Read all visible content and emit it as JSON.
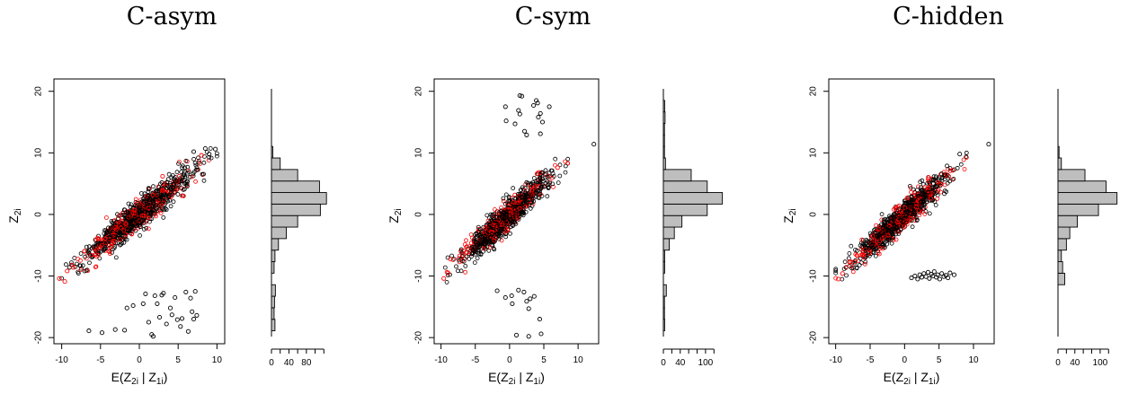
{
  "chart_data": [
    {
      "type": "scatter",
      "title": "C-asym",
      "xlabel": {
        "main": "E(Z",
        "s1": "2i",
        "mid": " | Z",
        "s2": "1i",
        "end": ")"
      },
      "ylabel": {
        "main": "Z",
        "s1": "2i"
      },
      "xlim": [
        -11,
        11
      ],
      "ylim": [
        -21,
        22
      ],
      "xticks": [
        -10,
        -5,
        0,
        5,
        10
      ],
      "yticks": [
        -20,
        -10,
        0,
        10,
        20
      ],
      "bulk": {
        "slope": 1.0,
        "xmin": -10,
        "xmax": 10,
        "ymin": -11,
        "ymax": 11,
        "spread": 1.2
      },
      "series": [
        {
          "color": "#000000",
          "points": [
            [
              -6.5,
              -18.9
            ],
            [
              -4.8,
              -19.2
            ],
            [
              -3.1,
              -18.7
            ],
            [
              -1.9,
              -18.8
            ],
            [
              -1.6,
              -15.2
            ],
            [
              -0.8,
              -14.8
            ],
            [
              0.5,
              -14.5
            ],
            [
              0.8,
              -12.9
            ],
            [
              1.2,
              -17.5
            ],
            [
              1.6,
              -19.5
            ],
            [
              2.0,
              -13.2
            ],
            [
              2.3,
              -14.5
            ],
            [
              2.6,
              -16.7
            ],
            [
              2.9,
              -13.1
            ],
            [
              3.1,
              -12.8
            ],
            [
              3.5,
              -17.8
            ],
            [
              4.0,
              -15.2
            ],
            [
              4.2,
              -16.3
            ],
            [
              4.6,
              -13.5
            ],
            [
              4.9,
              -17.1
            ],
            [
              5.3,
              -18.2
            ],
            [
              5.5,
              -16.9
            ],
            [
              6.0,
              -12.6
            ],
            [
              6.3,
              -19.0
            ],
            [
              6.6,
              -13.6
            ],
            [
              6.8,
              -15.8
            ],
            [
              7.0,
              -17.0
            ],
            [
              7.2,
              -12.5
            ],
            [
              7.4,
              -16.4
            ],
            [
              1.8,
              -19.8
            ],
            [
              8.5,
              10.7
            ],
            [
              9.0,
              9.8
            ],
            [
              9.8,
              10.6
            ],
            [
              7.0,
              10.2
            ],
            [
              -9.0,
              -8.6
            ]
          ]
        },
        {
          "color": "#ff0000",
          "points": [
            [
              -10.3,
              -10.4
            ],
            [
              -9.6,
              -10.9
            ],
            [
              -9.3,
              -9.2
            ],
            [
              -8.5,
              -8.6
            ],
            [
              3.0,
              6.2
            ],
            [
              8.0,
              9.6
            ]
          ]
        }
      ],
      "histogram": {
        "bins": [
          {
            "lo": -20,
            "hi": -18,
            "count": 8
          },
          {
            "lo": -18,
            "hi": -16,
            "count": 6
          },
          {
            "lo": -16,
            "hi": -14,
            "count": 7
          },
          {
            "lo": -14,
            "hi": -12,
            "count": 9
          },
          {
            "lo": -12,
            "hi": -10,
            "count": 0
          },
          {
            "lo": -10,
            "hi": -8,
            "count": 6
          },
          {
            "lo": -8,
            "hi": -6,
            "count": 8
          },
          {
            "lo": -6,
            "hi": -4,
            "count": 16
          },
          {
            "lo": -4,
            "hi": -2,
            "count": 34
          },
          {
            "lo": -2,
            "hi": 0,
            "count": 60
          },
          {
            "lo": 0,
            "hi": 2,
            "count": 112
          },
          {
            "lo": 2,
            "hi": 4,
            "count": 126
          },
          {
            "lo": 4,
            "hi": 6,
            "count": 110
          },
          {
            "lo": 6,
            "hi": 8,
            "count": 60
          },
          {
            "lo": 8,
            "hi": 10,
            "count": 20
          },
          {
            "lo": 10,
            "hi": 12,
            "count": 3
          }
        ],
        "xticks": [
          0,
          40,
          80
        ],
        "xmax": 140
      }
    },
    {
      "type": "scatter",
      "title": "C-sym",
      "xlabel": {
        "main": "E(Z",
        "s1": "2i",
        "mid": " | Z",
        "s2": "1i",
        "end": ")"
      },
      "ylabel": {
        "main": "Z",
        "s1": "2i"
      },
      "xlim": [
        -11,
        13
      ],
      "ylim": [
        -21,
        22
      ],
      "xticks": [
        -10,
        -5,
        0,
        5,
        10
      ],
      "yticks": [
        -20,
        -10,
        0,
        10,
        20
      ],
      "bulk": {
        "slope": 1.0,
        "xmin": -10,
        "xmax": 8.5,
        "ymin": -11,
        "ymax": 9,
        "spread": 1.1
      },
      "series": [
        {
          "color": "#000000",
          "points": [
            [
              1.5,
              19.3
            ],
            [
              1.8,
              19.2
            ],
            [
              3.9,
              18.5
            ],
            [
              4.1,
              18.1
            ],
            [
              3.5,
              17.7
            ],
            [
              5.8,
              17.5
            ],
            [
              -0.6,
              17.5
            ],
            [
              1.3,
              16.9
            ],
            [
              1.5,
              16.3
            ],
            [
              4.5,
              16.4
            ],
            [
              4.2,
              15.8
            ],
            [
              -0.5,
              15.2
            ],
            [
              0.8,
              14.7
            ],
            [
              4.8,
              15.0
            ],
            [
              2.2,
              13.5
            ],
            [
              4.5,
              13.1
            ],
            [
              2.5,
              12.9
            ],
            [
              12.3,
              11.4
            ],
            [
              -1.8,
              -12.4
            ],
            [
              1.3,
              -12.3
            ],
            [
              2.1,
              -12.6
            ],
            [
              -0.6,
              -13.5
            ],
            [
              0.3,
              -13.2
            ],
            [
              2.5,
              -14.1
            ],
            [
              3.0,
              -13.7
            ],
            [
              3.6,
              -13.3
            ],
            [
              0.4,
              -14.5
            ],
            [
              2.8,
              -15.3
            ],
            [
              4.4,
              -17.0
            ],
            [
              1.0,
              -19.6
            ],
            [
              2.8,
              -19.8
            ],
            [
              4.6,
              -19.4
            ]
          ]
        },
        {
          "color": "#ff0000",
          "points": [
            [
              -9.6,
              -10.4
            ],
            [
              -9.0,
              -9.5
            ],
            [
              4.0,
              6.6
            ],
            [
              7.0,
              7.6
            ]
          ]
        }
      ],
      "histogram": {
        "bins": [
          {
            "lo": -20,
            "hi": -18,
            "count": 3
          },
          {
            "lo": -18,
            "hi": -16,
            "count": 1
          },
          {
            "lo": -16,
            "hi": -14,
            "count": 1
          },
          {
            "lo": -14,
            "hi": -12,
            "count": 7
          },
          {
            "lo": -12,
            "hi": -10,
            "count": 0
          },
          {
            "lo": -10,
            "hi": -8,
            "count": 3
          },
          {
            "lo": -8,
            "hi": -6,
            "count": 3
          },
          {
            "lo": -6,
            "hi": -4,
            "count": 14
          },
          {
            "lo": -4,
            "hi": -2,
            "count": 26
          },
          {
            "lo": -2,
            "hi": 0,
            "count": 44
          },
          {
            "lo": 0,
            "hi": 2,
            "count": 104
          },
          {
            "lo": 2,
            "hi": 4,
            "count": 140
          },
          {
            "lo": 4,
            "hi": 6,
            "count": 104
          },
          {
            "lo": 6,
            "hi": 8,
            "count": 66
          },
          {
            "lo": 8,
            "hi": 10,
            "count": 5
          },
          {
            "lo": 10,
            "hi": 12,
            "count": 1
          },
          {
            "lo": 12,
            "hi": 14,
            "count": 2
          },
          {
            "lo": 14,
            "hi": 16,
            "count": 2
          },
          {
            "lo": 16,
            "hi": 18,
            "count": 4
          },
          {
            "lo": 18,
            "hi": 20,
            "count": 3
          }
        ],
        "xticks": [
          0,
          40,
          100
        ],
        "xmax": 145
      }
    },
    {
      "type": "scatter",
      "title": "C-hidden",
      "xlabel": {
        "main": "E(Z",
        "s1": "2i",
        "mid": " | Z",
        "s2": "1i",
        "end": ")"
      },
      "ylabel": {
        "main": "Z",
        "s1": "2i"
      },
      "xlim": [
        -11,
        13
      ],
      "ylim": [
        -21,
        22
      ],
      "xticks": [
        -10,
        -5,
        0,
        5,
        10
      ],
      "yticks": [
        -20,
        -10,
        0,
        10,
        20
      ],
      "bulk": {
        "slope": 1.0,
        "xmin": -10,
        "xmax": 9,
        "ymin": -11,
        "ymax": 10,
        "spread": 1.1
      },
      "series": [
        {
          "color": "#000000",
          "points": [
            [
              1.0,
              -10.3
            ],
            [
              1.5,
              -10.0
            ],
            [
              1.9,
              -10.5
            ],
            [
              2.2,
              -9.8
            ],
            [
              2.5,
              -10.2
            ],
            [
              2.8,
              -9.6
            ],
            [
              3.1,
              -10.1
            ],
            [
              3.4,
              -9.4
            ],
            [
              3.6,
              -10.4
            ],
            [
              3.9,
              -9.7
            ],
            [
              4.1,
              -10.0
            ],
            [
              4.3,
              -9.3
            ],
            [
              4.6,
              -10.2
            ],
            [
              4.8,
              -9.8
            ],
            [
              5.1,
              -10.5
            ],
            [
              5.4,
              -9.6
            ],
            [
              5.7,
              -10.1
            ],
            [
              6.0,
              -9.9
            ],
            [
              6.3,
              -10.3
            ],
            [
              6.6,
              -9.5
            ],
            [
              7.2,
              -9.8
            ],
            [
              12.2,
              11.4
            ],
            [
              8.0,
              9.8
            ]
          ]
        },
        {
          "color": "#ff0000",
          "points": [
            [
              -9.6,
              -10.5
            ],
            [
              -9.0,
              -9.6
            ],
            [
              3.5,
              6.0
            ],
            [
              7.0,
              7.2
            ]
          ]
        }
      ],
      "histogram": {
        "bins": [
          {
            "lo": -12,
            "hi": -10,
            "count": 16
          },
          {
            "lo": -10,
            "hi": -8,
            "count": 11
          },
          {
            "lo": -8,
            "hi": -6,
            "count": 8
          },
          {
            "lo": -6,
            "hi": -4,
            "count": 20
          },
          {
            "lo": -4,
            "hi": -2,
            "count": 28
          },
          {
            "lo": -2,
            "hi": 0,
            "count": 46
          },
          {
            "lo": 0,
            "hi": 2,
            "count": 96
          },
          {
            "lo": 2,
            "hi": 4,
            "count": 140
          },
          {
            "lo": 4,
            "hi": 6,
            "count": 114
          },
          {
            "lo": 6,
            "hi": 8,
            "count": 64
          },
          {
            "lo": 8,
            "hi": 10,
            "count": 8
          },
          {
            "lo": 10,
            "hi": 12,
            "count": 2
          }
        ],
        "xticks": [
          0,
          40,
          100
        ],
        "xmax": 145
      }
    }
  ]
}
